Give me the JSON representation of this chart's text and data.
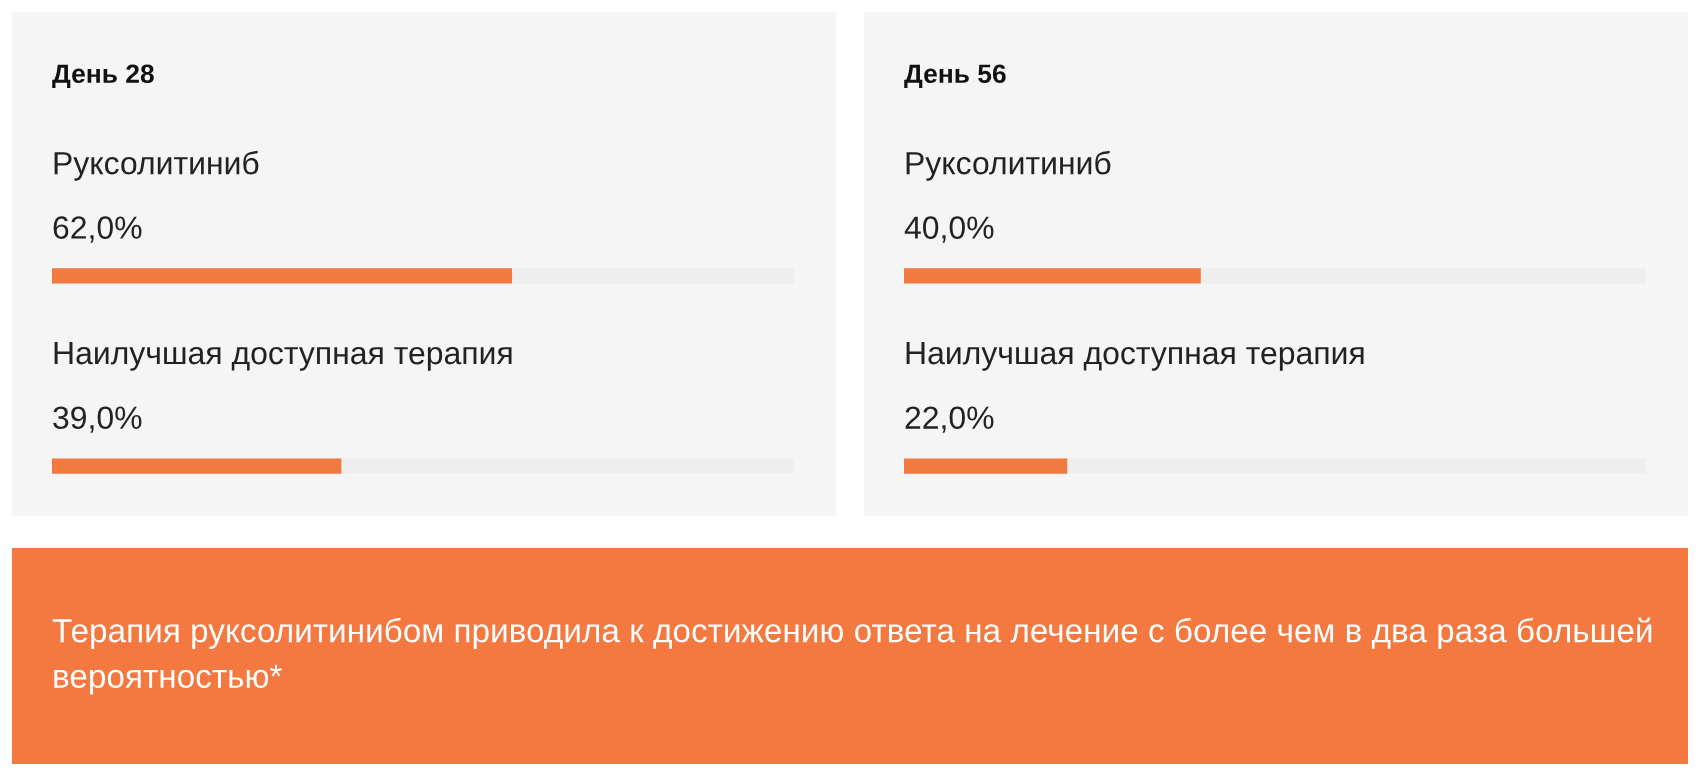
{
  "chart_data": [
    {
      "type": "bar",
      "orientation": "horizontal",
      "title": "День 28",
      "categories": [
        "Руксолитиниб",
        "Наилучшая доступная терапия"
      ],
      "values": [
        62,
        39
      ],
      "value_labels": [
        "62,0%",
        "39,0%"
      ],
      "data_labels": true,
      "color": "#f07a40",
      "xlim": [
        0,
        100
      ]
    },
    {
      "type": "bar",
      "orientation": "horizontal",
      "title": "День 56",
      "categories": [
        "Руксолитиниб",
        "Наилучшая доступная терапия"
      ],
      "values": [
        40,
        22
      ],
      "value_labels": [
        "40,0%",
        "22,0%"
      ],
      "data_labels": true,
      "color": "#f07a40",
      "xlim": [
        0,
        100
      ]
    },
    {
      "type": "other",
      "annotations": [
        "Терапия руксолитинибом приводила к достижению ответа на лечение с более чем в два раза большей вероятностью*"
      ],
      "color": "#f37941"
    }
  ]
}
